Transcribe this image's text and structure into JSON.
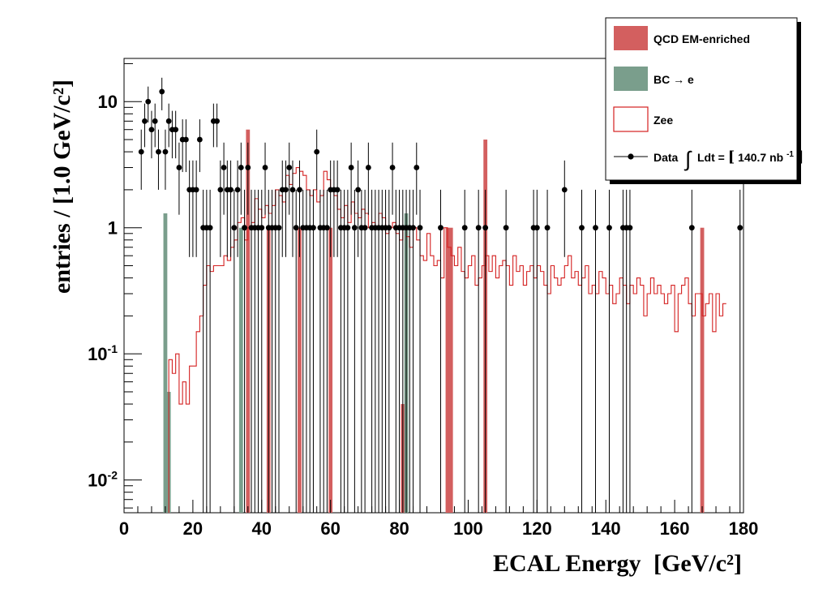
{
  "chart_data": {
    "type": "histogram",
    "xlabel": "ECAL Energy",
    "xlabel_unit": "[GeV/c²]",
    "ylabel": "entries / [1.0 GeV/c²]",
    "xlim": [
      0,
      180
    ],
    "ylim": [
      0.0055,
      22
    ],
    "yscale": "log",
    "x_ticks": [
      "0",
      "20",
      "40",
      "60",
      "80",
      "100",
      "120",
      "140",
      "160",
      "180"
    ],
    "y_ticks": [
      {
        "base": "10",
        "exp": "-2",
        "value": 0.01
      },
      {
        "base": "10",
        "exp": "-1",
        "value": 0.1
      },
      {
        "base": "1",
        "exp": "",
        "value": 1
      },
      {
        "base": "10",
        "exp": "",
        "value": 10
      }
    ],
    "legend_position": "top-right",
    "legend": [
      {
        "label": "QCD EM-enriched",
        "style": "fill",
        "color": "#d35f5f"
      },
      {
        "label": "BC → e",
        "style": "fill",
        "color": "#7a9e8c"
      },
      {
        "label": "Zee",
        "style": "outline",
        "color": "#d42020"
      },
      {
        "label": "Data",
        "style": "marker",
        "color": "#000000",
        "annotation_prefix": "Ldt = ",
        "annotation_value": "140.7 nb",
        "annotation_exp": "-1"
      }
    ],
    "series": [
      {
        "name": "QCD EM-enriched",
        "style": "bar",
        "color": "#d35f5f",
        "x": [
          36,
          42,
          51,
          60,
          81,
          94,
          95,
          105,
          168
        ],
        "values": [
          6,
          1,
          1,
          1,
          0.04,
          1,
          1,
          5,
          1
        ]
      },
      {
        "name": "BC → e",
        "style": "bar",
        "color": "#7a9e8c",
        "x": [
          12,
          13,
          34,
          82
        ],
        "values": [
          1.3,
          0.05,
          1,
          1.3
        ]
      },
      {
        "name": "Zee",
        "style": "step",
        "color": "#d42020",
        "x_start": 13,
        "bin_width": 1,
        "values": [
          0.09,
          0.07,
          0.1,
          0.04,
          0.06,
          0.04,
          0.08,
          0.08,
          0.15,
          0.2,
          0.35,
          0.5,
          0.45,
          0.5,
          0.5,
          0.5,
          0.6,
          0.55,
          0.7,
          0.8,
          1.1,
          1.2,
          0.8,
          1.0,
          1.1,
          1.7,
          1.4,
          1.2,
          1.5,
          1.3,
          1.5,
          2.0,
          1.8,
          1.6,
          2.6,
          2.2,
          2.7,
          3.0,
          2.8,
          2.6,
          2.0,
          1.8,
          2.0,
          1.6,
          1.8,
          2.8,
          2.4,
          2.0,
          1.8,
          1.4,
          1.2,
          1.5,
          1.1,
          1.6,
          1.3,
          1.2,
          1.4,
          1.3,
          1.0,
          1.1,
          1.0,
          1.3,
          1.2,
          0.9,
          1.0,
          1.1,
          0.9,
          0.8,
          1.0,
          0.85,
          0.7,
          1.0,
          0.8,
          0.6,
          0.55,
          0.9,
          0.6,
          0.5,
          0.55,
          0.4,
          1.0,
          0.7,
          0.6,
          0.5,
          0.7,
          0.45,
          0.4,
          0.5,
          0.6,
          0.35,
          0.4,
          0.5,
          0.6,
          0.45,
          0.6,
          0.4,
          0.5,
          0.55,
          0.5,
          0.35,
          0.6,
          0.45,
          0.5,
          0.35,
          0.45,
          0.5,
          0.4,
          0.5,
          0.45,
          0.35,
          0.3,
          0.5,
          0.4,
          0.35,
          0.4,
          0.5,
          0.6,
          0.4,
          0.45,
          0.35,
          0.4,
          0.5,
          0.3,
          0.35,
          0.3,
          0.45,
          0.4,
          0.3,
          0.35,
          0.25,
          0.3,
          0.4,
          0.35,
          0.25,
          0.35,
          0.3,
          0.4,
          0.35,
          0.2,
          0.3,
          0.4,
          0.3,
          0.35,
          0.3,
          0.25,
          0.3,
          0.35,
          0.15,
          0.3,
          0.35,
          0.4,
          0.25,
          0.2,
          0.3,
          0.3,
          0.2,
          0.25,
          0.3,
          0.15,
          0.3,
          0.2,
          0.25
        ]
      },
      {
        "name": "Data",
        "style": "points",
        "color": "#000000",
        "x": [
          5,
          6,
          7,
          8,
          9,
          10,
          11,
          12,
          13,
          14,
          15,
          16,
          17,
          18,
          19,
          20,
          21,
          22,
          23,
          24,
          25,
          26,
          27,
          28,
          29,
          30,
          31,
          32,
          33,
          34,
          35,
          36,
          37,
          38,
          39,
          40,
          41,
          42,
          43,
          44,
          45,
          46,
          47,
          48,
          49,
          50,
          51,
          52,
          53,
          54,
          55,
          56,
          57,
          58,
          59,
          60,
          61,
          62,
          63,
          64,
          65,
          66,
          67,
          68,
          69,
          70,
          71,
          72,
          73,
          74,
          75,
          76,
          77,
          78,
          79,
          80,
          81,
          82,
          83,
          84,
          85,
          86,
          92,
          99,
          103,
          105,
          111,
          119,
          120,
          123,
          128,
          133,
          137,
          141,
          145,
          146,
          147,
          165,
          179
        ],
        "values": [
          4,
          7,
          10,
          6,
          7,
          4,
          12,
          4,
          7,
          6,
          6,
          3,
          5,
          5,
          2,
          2,
          2,
          5,
          1,
          1,
          1,
          7,
          7,
          2,
          3,
          2,
          2,
          1,
          2,
          3,
          1,
          3,
          1,
          1,
          1,
          1,
          3,
          1,
          1,
          1,
          1,
          2,
          2,
          3,
          2,
          1,
          2,
          1,
          1,
          1,
          1,
          4,
          1,
          1,
          1,
          2,
          2,
          2,
          1,
          1,
          1,
          3,
          1,
          2,
          1,
          1,
          3,
          1,
          1,
          1,
          1,
          1,
          1,
          3,
          1,
          1,
          1,
          1,
          1,
          1,
          3,
          1,
          1,
          1,
          1,
          1,
          1,
          1,
          1,
          1,
          2,
          1,
          1,
          1,
          1,
          1,
          1,
          1,
          1
        ]
      }
    ]
  }
}
